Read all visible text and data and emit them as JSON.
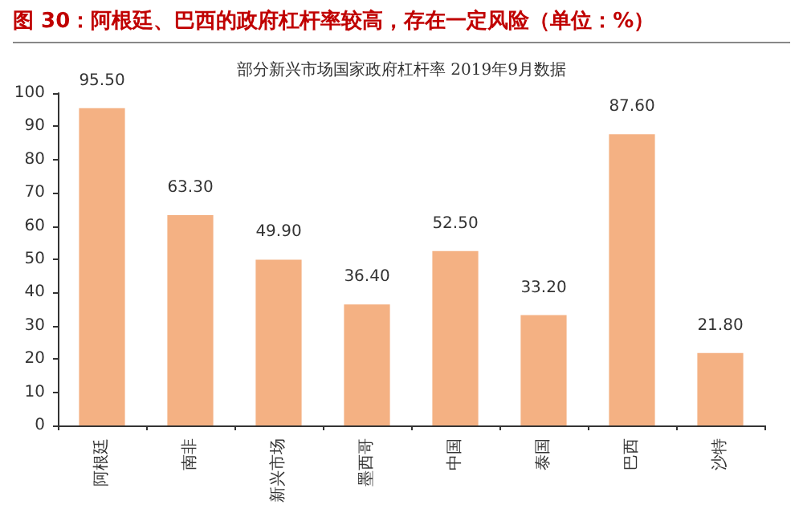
{
  "chart_data": {
    "type": "bar",
    "title": "图 30：阿根廷、巴西的政府杠杆率较高，存在一定风险（单位：%）",
    "subtitle": "部分新兴市场国家政府杠杆率 2019年9月数据",
    "categories": [
      "阿根廷",
      "南非",
      "新兴市场",
      "墨西哥",
      "中国",
      "泰国",
      "巴西",
      "沙特"
    ],
    "values": [
      95.5,
      63.3,
      49.9,
      36.4,
      52.5,
      33.2,
      87.6,
      21.8
    ],
    "value_labels": [
      "95.50",
      "63.30",
      "49.90",
      "36.40",
      "52.50",
      "33.20",
      "87.60",
      "21.80"
    ],
    "color": "#f4b183",
    "ylim": [
      0,
      100
    ],
    "yticks": [
      0,
      10,
      20,
      30,
      40,
      50,
      60,
      70,
      80,
      90,
      100
    ],
    "grid": false
  }
}
